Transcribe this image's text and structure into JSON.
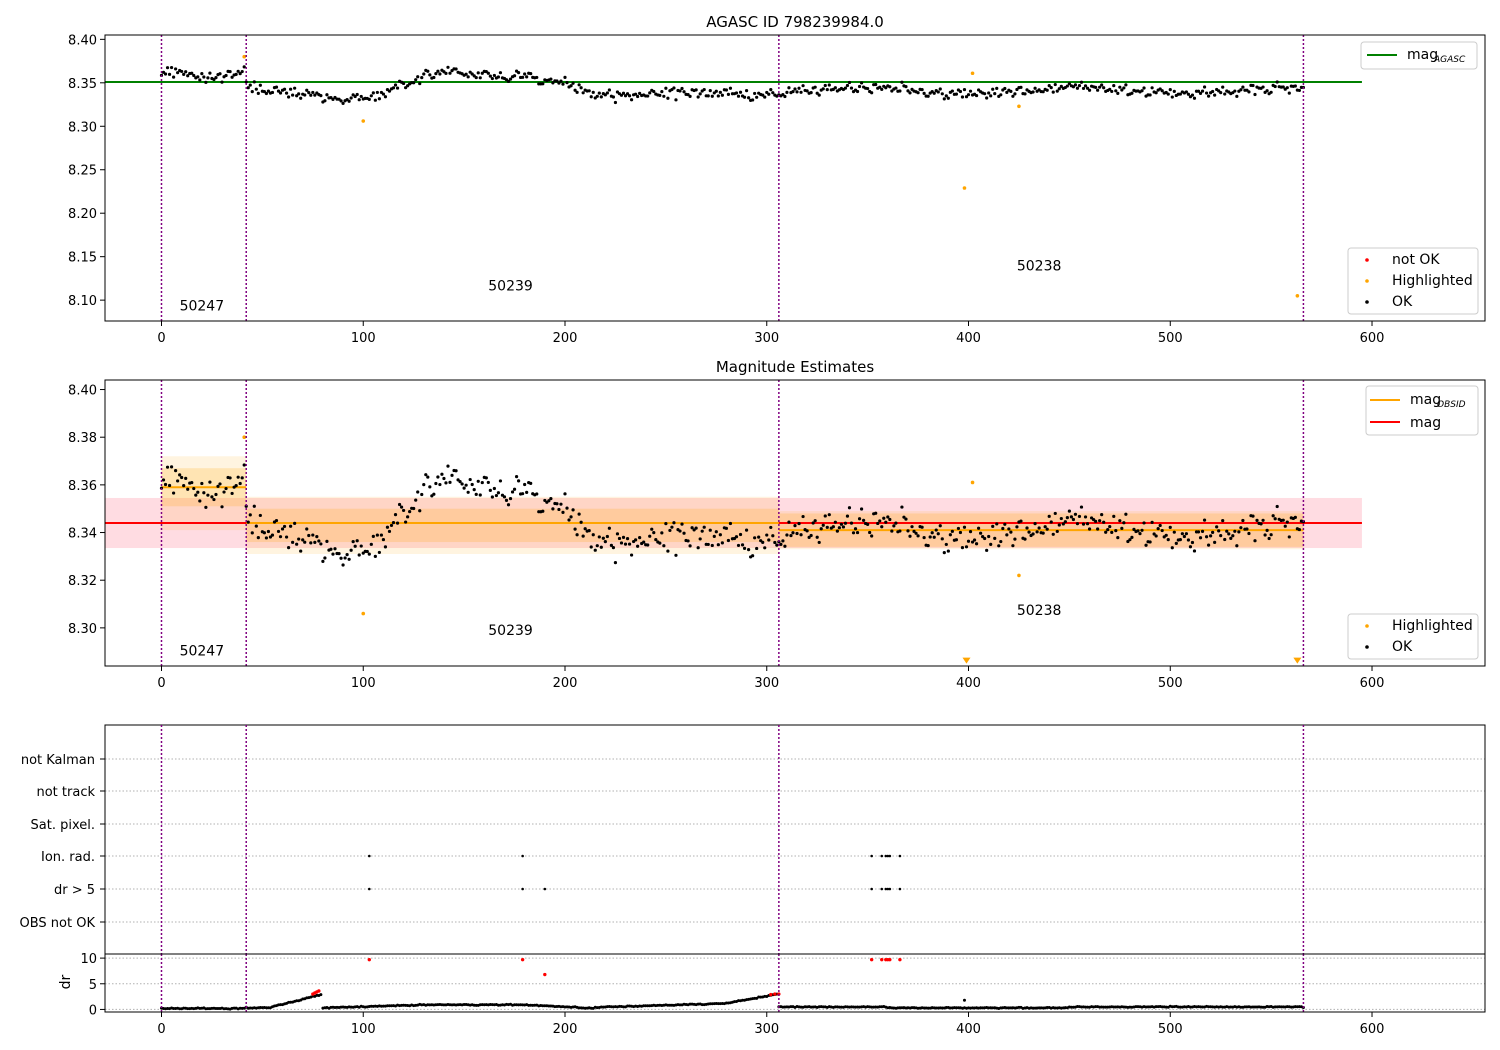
{
  "figure": {
    "background": "#ffffff"
  },
  "chart_data": [
    {
      "type": "scatter",
      "title": "AGASC ID 798239984.0",
      "xlim": [
        -28,
        656
      ],
      "ylim": [
        8.076,
        8.405
      ],
      "xticks": [
        0,
        100,
        200,
        300,
        400,
        500,
        600
      ],
      "xtick_labels": [
        "0",
        "100",
        "200",
        "300",
        "400",
        "500",
        "600"
      ],
      "yticks": [
        8.1,
        8.15,
        8.2,
        8.25,
        8.3,
        8.35,
        8.4
      ],
      "ytick_labels": [
        "8.10",
        "8.15",
        "8.20",
        "8.25",
        "8.30",
        "8.35",
        "8.40"
      ],
      "obsid_boundaries": [
        0,
        42,
        306,
        566
      ],
      "obsid_labels": [
        {
          "text": "50247",
          "x": 20,
          "y": 8.088
        },
        {
          "text": "50239",
          "x": 173,
          "y": 8.111
        },
        {
          "text": "50238",
          "x": 435,
          "y": 8.134
        }
      ],
      "mag_agasc": 8.351,
      "line_color": "#008000",
      "highlighted": {
        "x": [
          41,
          100,
          398,
          402,
          425,
          563
        ],
        "y": [
          8.38,
          8.306,
          8.229,
          8.361,
          8.323,
          8.105
        ]
      },
      "legend_top": [
        {
          "label": "mag",
          "subscript": "AGASC",
          "color": "#008000",
          "kind": "line"
        }
      ],
      "legend_bottom": [
        {
          "label": "not OK",
          "color": "#ff0000",
          "kind": "dot"
        },
        {
          "label": "Highlighted",
          "color": "#ffa500",
          "kind": "dot"
        },
        {
          "label": "OK",
          "color": "#000000",
          "kind": "dot"
        }
      ]
    },
    {
      "type": "scatter",
      "title": "Magnitude Estimates",
      "xlim": [
        -28,
        656
      ],
      "ylim": [
        8.284,
        8.404
      ],
      "xticks": [
        0,
        100,
        200,
        300,
        400,
        500,
        600
      ],
      "xtick_labels": [
        "0",
        "100",
        "200",
        "300",
        "400",
        "500",
        "600"
      ],
      "yticks": [
        8.3,
        8.32,
        8.34,
        8.36,
        8.38,
        8.4
      ],
      "ytick_labels": [
        "8.30",
        "8.32",
        "8.34",
        "8.36",
        "8.38",
        "8.40"
      ],
      "obsid_boundaries": [
        0,
        42,
        306,
        566
      ],
      "obsid_labels": [
        {
          "text": "50247",
          "x": 20,
          "y": 8.2885
        },
        {
          "text": "50239",
          "x": 173,
          "y": 8.297
        },
        {
          "text": "50238",
          "x": 435,
          "y": 8.3055
        }
      ],
      "mag": {
        "value": 8.344,
        "low": 8.3335,
        "high": 8.3545,
        "x_range": [
          -28,
          595
        ],
        "color": "#ff0000",
        "band_color": "#ffc0cb"
      },
      "mag_obsid": [
        {
          "x_range": [
            0,
            42
          ],
          "value": 8.359,
          "low": 8.351,
          "high": 8.367,
          "outer_low": 8.341,
          "outer_high": 8.372
        },
        {
          "x_range": [
            42,
            306
          ],
          "value": 8.344,
          "low": 8.336,
          "high": 8.35,
          "outer_low": 8.331,
          "outer_high": 8.355
        },
        {
          "x_range": [
            306,
            566
          ],
          "value": 8.341,
          "low": 8.334,
          "high": 8.348,
          "outer_low": 8.333,
          "outer_high": 8.349
        }
      ],
      "obsid_color": "#ffa500",
      "highlighted": {
        "x": [
          41,
          100,
          402,
          425
        ],
        "y": [
          8.38,
          8.306,
          8.361,
          8.322
        ]
      },
      "offscale_markers": {
        "x": [
          399,
          563
        ],
        "y": [
          8.285,
          8.285
        ]
      },
      "legend_top": [
        {
          "label": "mag",
          "subscript": "OBSID",
          "color": "#ffa500",
          "kind": "line"
        },
        {
          "label": "mag",
          "subscript": "",
          "color": "#ff0000",
          "kind": "line"
        }
      ],
      "legend_bottom": [
        {
          "label": "Highlighted",
          "color": "#ffa500",
          "kind": "dot"
        },
        {
          "label": "OK",
          "color": "#000000",
          "kind": "dot"
        }
      ]
    },
    {
      "type": "scatter",
      "title": "",
      "xlim": [
        -28,
        656
      ],
      "flag_rows": [
        "not Kalman",
        "not track",
        "Sat. pixel.",
        "Ion. rad.",
        "dr > 5",
        "OBS not OK"
      ],
      "obsid_boundaries": [
        0,
        42,
        306,
        566
      ],
      "flags": {
        "Ion. rad.": [
          103,
          179,
          352,
          357,
          359,
          360,
          361,
          366
        ],
        "dr > 5": [
          103,
          179,
          190,
          352,
          357,
          359,
          360,
          361,
          366
        ]
      }
    },
    {
      "type": "scatter",
      "title": "",
      "ylabel": "dr",
      "xlim": [
        -28,
        656
      ],
      "ylim": [
        -0.5,
        10.8
      ],
      "xticks": [
        0,
        100,
        200,
        300,
        400,
        500,
        600
      ],
      "xtick_labels": [
        "0",
        "100",
        "200",
        "300",
        "400",
        "500",
        "600"
      ],
      "yticks": [
        0,
        5,
        10
      ],
      "ytick_labels": [
        "0",
        "5",
        "10"
      ],
      "obsid_boundaries": [
        0,
        42,
        306,
        566
      ],
      "red_points": {
        "x": [
          75,
          76,
          77,
          78,
          103,
          179,
          190,
          302,
          304,
          306,
          352,
          357,
          359,
          360,
          361,
          366
        ],
        "y": [
          3.0,
          3.2,
          3.4,
          3.6,
          9.7,
          9.7,
          6.8,
          2.9,
          3.0,
          3.0,
          9.7,
          9.7,
          9.7,
          9.7,
          9.7,
          9.7
        ]
      },
      "ok_points": {
        "x": [
          398
        ],
        "y": [
          1.8
        ]
      }
    }
  ]
}
